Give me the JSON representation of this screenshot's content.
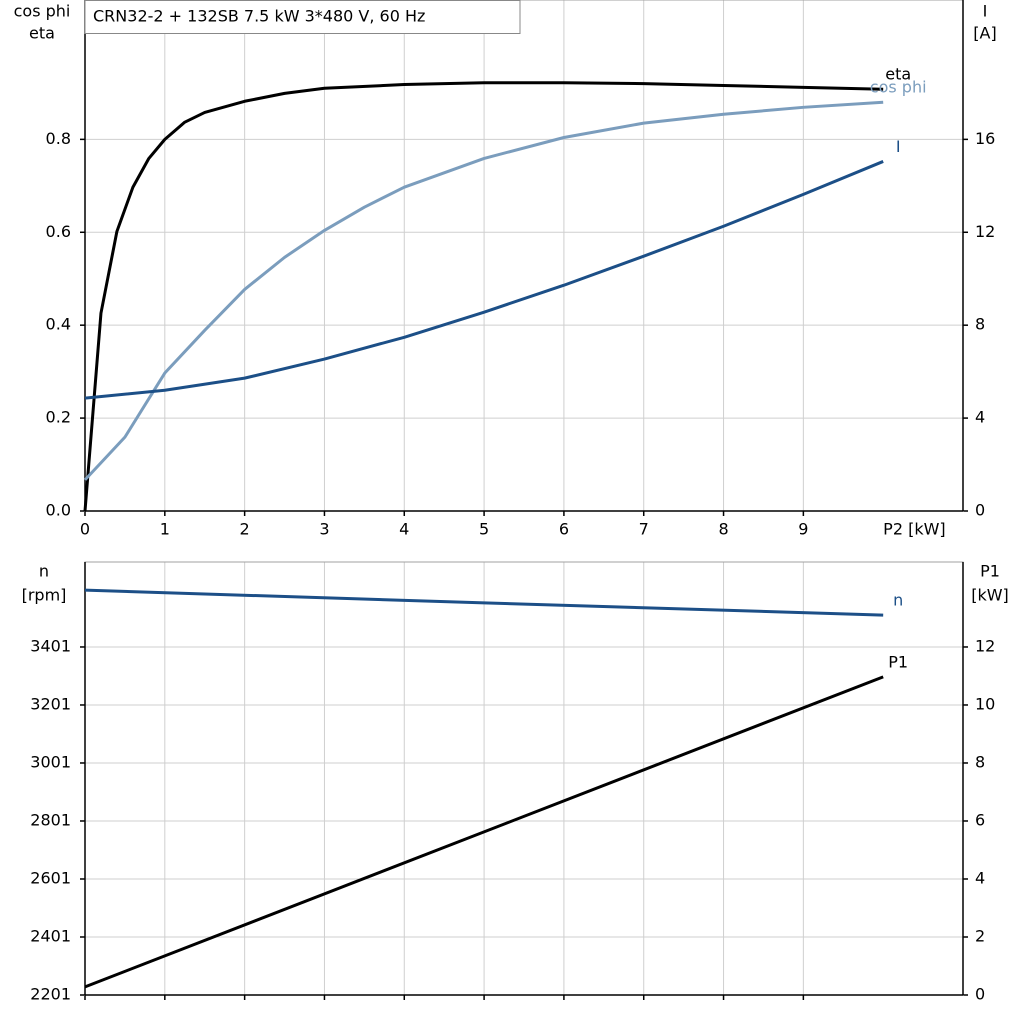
{
  "chart_data": [
    {
      "type": "line",
      "title": "CRN32-2 + 132SB   7.5 kW   3*480 V, 60 Hz",
      "y_label": [
        "cos phi",
        "eta"
      ],
      "y2_label": [
        "I",
        "[A]"
      ],
      "x_label": "P2 [kW]",
      "xlim": [
        0,
        11
      ],
      "xticks": [
        0,
        1,
        2,
        3,
        4,
        5,
        6,
        7,
        8,
        9
      ],
      "ylim": [
        0,
        1.1
      ],
      "yticks": [
        {
          "value": 0,
          "label": "0.0"
        },
        0.2,
        0.4,
        0.6,
        0.8
      ],
      "y2lim": [
        0,
        22
      ],
      "y2ticks": [
        0,
        4,
        8,
        12,
        16
      ],
      "grid": true,
      "xtick_labels": true,
      "series": [
        {
          "name": "eta",
          "color": "#000000",
          "x": [
            0,
            0.2,
            0.4,
            0.6,
            0.8,
            1,
            1.25,
            1.5,
            2,
            2.5,
            3,
            4,
            5,
            6,
            7,
            8,
            9,
            10
          ],
          "values": [
            0,
            0.426,
            0.602,
            0.697,
            0.759,
            0.8,
            0.837,
            0.858,
            0.882,
            0.899,
            0.91,
            0.918,
            0.922,
            0.922,
            0.92,
            0.916,
            0.912,
            0.908
          ]
        },
        {
          "name": "cos phi",
          "color": "#7b9dbd",
          "x": [
            0,
            0.5,
            1,
            1.5,
            2,
            2.5,
            3,
            3.5,
            4,
            5,
            6,
            7,
            8,
            9,
            10
          ],
          "values": [
            0.067,
            0.159,
            0.297,
            0.389,
            0.477,
            0.546,
            0.604,
            0.654,
            0.697,
            0.759,
            0.804,
            0.835,
            0.854,
            0.869,
            0.88
          ]
        },
        {
          "name": "I",
          "color": "#1c4f87",
          "axis": "y2",
          "x": [
            0,
            1,
            2,
            3,
            4,
            5,
            6,
            7,
            8,
            9,
            10
          ],
          "values": [
            4.86,
            5.2,
            5.72,
            6.54,
            7.48,
            8.56,
            9.72,
            10.97,
            12.26,
            13.63,
            15.05
          ]
        }
      ]
    },
    {
      "type": "line",
      "y_label": [
        "n",
        "[rpm]"
      ],
      "y2_label": [
        "P1",
        "[kW]"
      ],
      "xlim": [
        0,
        11
      ],
      "xticks": [
        0,
        1,
        2,
        3,
        4,
        5,
        6,
        7,
        8,
        9
      ],
      "ylim": [
        2201,
        3694
      ],
      "yticks": [
        2201,
        2401,
        2601,
        2801,
        3001,
        3201,
        3401
      ],
      "y2lim": [
        0,
        14.93
      ],
      "y2ticks": [
        0,
        2,
        4,
        6,
        8,
        10,
        12
      ],
      "grid": true,
      "xtick_labels": false,
      "series": [
        {
          "name": "n",
          "color": "#1c4f87",
          "x": [
            0,
            5,
            10
          ],
          "values": [
            3597,
            3553,
            3511
          ]
        },
        {
          "name": "P1",
          "color": "#000000",
          "axis": "y2",
          "x": [
            0,
            10
          ],
          "values": [
            0.28,
            10.97
          ]
        }
      ]
    }
  ]
}
